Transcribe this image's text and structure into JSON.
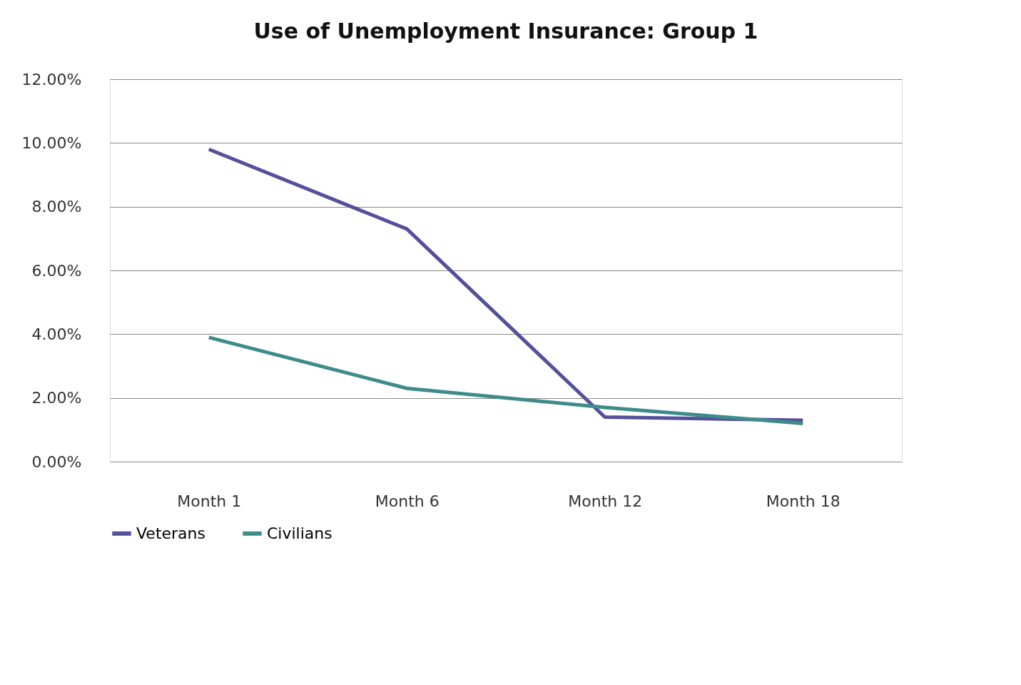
{
  "chart_data": {
    "type": "line",
    "title": "Use of Unemployment Insurance: Group 1",
    "categories": [
      "Month 1",
      "Month 6",
      "Month 12",
      "Month 18"
    ],
    "series": [
      {
        "name": "Veterans",
        "color": "#55509a",
        "values": [
          9.8,
          7.3,
          1.4,
          1.3
        ]
      },
      {
        "name": "Civilians",
        "color": "#3d8c8a",
        "values": [
          3.9,
          2.3,
          1.7,
          1.2
        ]
      }
    ],
    "ylim": [
      0,
      12
    ],
    "yticks": [
      {
        "value": 0,
        "label": "0.00%"
      },
      {
        "value": 2,
        "label": "2.00%"
      },
      {
        "value": 4,
        "label": "4.00%"
      },
      {
        "value": 6,
        "label": "6.00%"
      },
      {
        "value": 8,
        "label": "8.00%"
      },
      {
        "value": 10,
        "label": "10.00%"
      },
      {
        "value": 12,
        "label": "12.00%"
      }
    ],
    "grid": "y",
    "legend": "bottom",
    "marker": "none",
    "line_style": "solid"
  }
}
